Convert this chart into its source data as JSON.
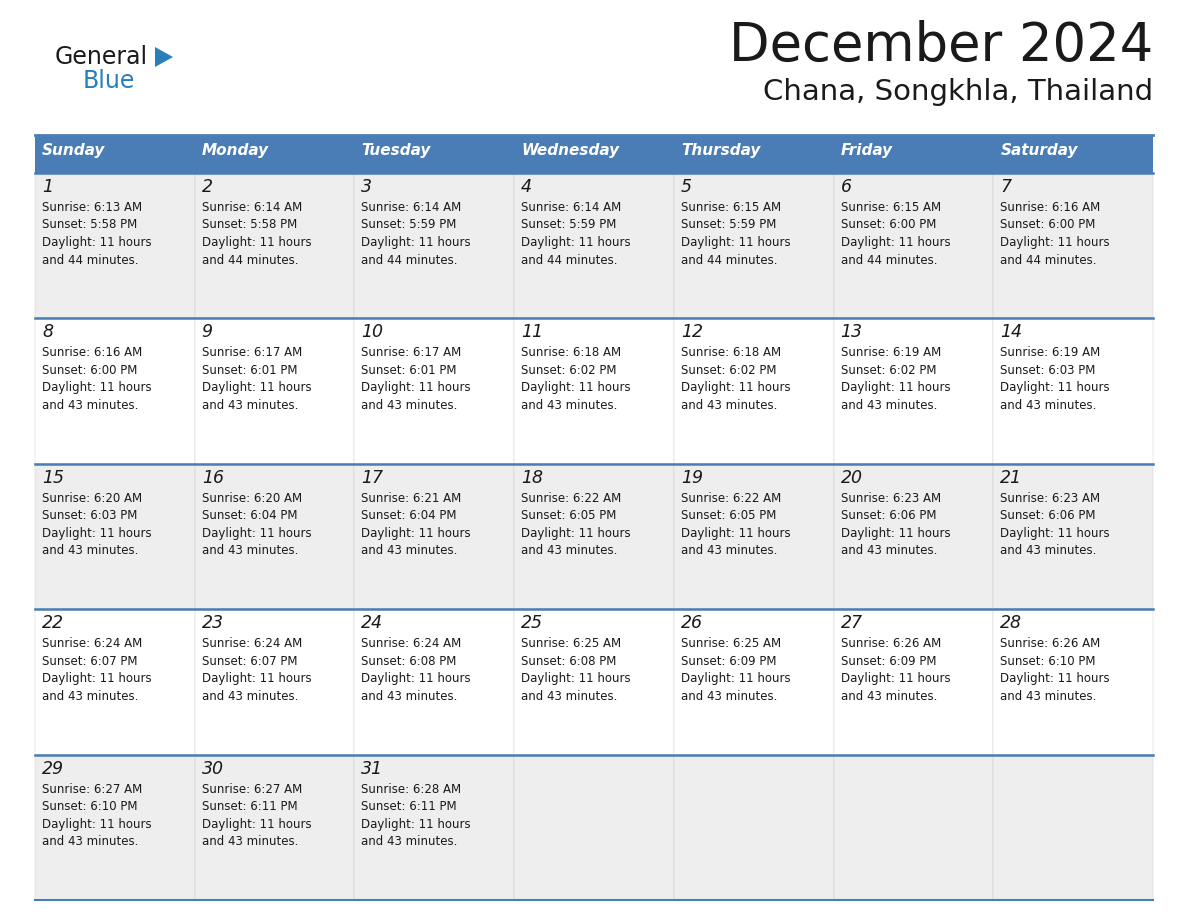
{
  "title": "December 2024",
  "subtitle": "Chana, Songkhla, Thailand",
  "header_color": "#4a7db5",
  "header_text_color": "#FFFFFF",
  "bg_color": "#FFFFFF",
  "cell_bg_even": "#eeeeee",
  "cell_bg_odd": "#FFFFFF",
  "border_color": "#4a7db5",
  "text_color": "#1a1a1a",
  "day_names": [
    "Sunday",
    "Monday",
    "Tuesday",
    "Wednesday",
    "Thursday",
    "Friday",
    "Saturday"
  ],
  "weeks": [
    [
      {
        "day": "1",
        "sunrise": "6:13 AM",
        "sunset": "5:58 PM",
        "dl1": "11 hours",
        "dl2": "and 44 minutes."
      },
      {
        "day": "2",
        "sunrise": "6:14 AM",
        "sunset": "5:58 PM",
        "dl1": "11 hours",
        "dl2": "and 44 minutes."
      },
      {
        "day": "3",
        "sunrise": "6:14 AM",
        "sunset": "5:59 PM",
        "dl1": "11 hours",
        "dl2": "and 44 minutes."
      },
      {
        "day": "4",
        "sunrise": "6:14 AM",
        "sunset": "5:59 PM",
        "dl1": "11 hours",
        "dl2": "and 44 minutes."
      },
      {
        "day": "5",
        "sunrise": "6:15 AM",
        "sunset": "5:59 PM",
        "dl1": "11 hours",
        "dl2": "and 44 minutes."
      },
      {
        "day": "6",
        "sunrise": "6:15 AM",
        "sunset": "6:00 PM",
        "dl1": "11 hours",
        "dl2": "and 44 minutes."
      },
      {
        "day": "7",
        "sunrise": "6:16 AM",
        "sunset": "6:00 PM",
        "dl1": "11 hours",
        "dl2": "and 44 minutes."
      }
    ],
    [
      {
        "day": "8",
        "sunrise": "6:16 AM",
        "sunset": "6:00 PM",
        "dl1": "11 hours",
        "dl2": "and 43 minutes."
      },
      {
        "day": "9",
        "sunrise": "6:17 AM",
        "sunset": "6:01 PM",
        "dl1": "11 hours",
        "dl2": "and 43 minutes."
      },
      {
        "day": "10",
        "sunrise": "6:17 AM",
        "sunset": "6:01 PM",
        "dl1": "11 hours",
        "dl2": "and 43 minutes."
      },
      {
        "day": "11",
        "sunrise": "6:18 AM",
        "sunset": "6:02 PM",
        "dl1": "11 hours",
        "dl2": "and 43 minutes."
      },
      {
        "day": "12",
        "sunrise": "6:18 AM",
        "sunset": "6:02 PM",
        "dl1": "11 hours",
        "dl2": "and 43 minutes."
      },
      {
        "day": "13",
        "sunrise": "6:19 AM",
        "sunset": "6:02 PM",
        "dl1": "11 hours",
        "dl2": "and 43 minutes."
      },
      {
        "day": "14",
        "sunrise": "6:19 AM",
        "sunset": "6:03 PM",
        "dl1": "11 hours",
        "dl2": "and 43 minutes."
      }
    ],
    [
      {
        "day": "15",
        "sunrise": "6:20 AM",
        "sunset": "6:03 PM",
        "dl1": "11 hours",
        "dl2": "and 43 minutes."
      },
      {
        "day": "16",
        "sunrise": "6:20 AM",
        "sunset": "6:04 PM",
        "dl1": "11 hours",
        "dl2": "and 43 minutes."
      },
      {
        "day": "17",
        "sunrise": "6:21 AM",
        "sunset": "6:04 PM",
        "dl1": "11 hours",
        "dl2": "and 43 minutes."
      },
      {
        "day": "18",
        "sunrise": "6:22 AM",
        "sunset": "6:05 PM",
        "dl1": "11 hours",
        "dl2": "and 43 minutes."
      },
      {
        "day": "19",
        "sunrise": "6:22 AM",
        "sunset": "6:05 PM",
        "dl1": "11 hours",
        "dl2": "and 43 minutes."
      },
      {
        "day": "20",
        "sunrise": "6:23 AM",
        "sunset": "6:06 PM",
        "dl1": "11 hours",
        "dl2": "and 43 minutes."
      },
      {
        "day": "21",
        "sunrise": "6:23 AM",
        "sunset": "6:06 PM",
        "dl1": "11 hours",
        "dl2": "and 43 minutes."
      }
    ],
    [
      {
        "day": "22",
        "sunrise": "6:24 AM",
        "sunset": "6:07 PM",
        "dl1": "11 hours",
        "dl2": "and 43 minutes."
      },
      {
        "day": "23",
        "sunrise": "6:24 AM",
        "sunset": "6:07 PM",
        "dl1": "11 hours",
        "dl2": "and 43 minutes."
      },
      {
        "day": "24",
        "sunrise": "6:24 AM",
        "sunset": "6:08 PM",
        "dl1": "11 hours",
        "dl2": "and 43 minutes."
      },
      {
        "day": "25",
        "sunrise": "6:25 AM",
        "sunset": "6:08 PM",
        "dl1": "11 hours",
        "dl2": "and 43 minutes."
      },
      {
        "day": "26",
        "sunrise": "6:25 AM",
        "sunset": "6:09 PM",
        "dl1": "11 hours",
        "dl2": "and 43 minutes."
      },
      {
        "day": "27",
        "sunrise": "6:26 AM",
        "sunset": "6:09 PM",
        "dl1": "11 hours",
        "dl2": "and 43 minutes."
      },
      {
        "day": "28",
        "sunrise": "6:26 AM",
        "sunset": "6:10 PM",
        "dl1": "11 hours",
        "dl2": "and 43 minutes."
      }
    ],
    [
      {
        "day": "29",
        "sunrise": "6:27 AM",
        "sunset": "6:10 PM",
        "dl1": "11 hours",
        "dl2": "and 43 minutes."
      },
      {
        "day": "30",
        "sunrise": "6:27 AM",
        "sunset": "6:11 PM",
        "dl1": "11 hours",
        "dl2": "and 43 minutes."
      },
      {
        "day": "31",
        "sunrise": "6:28 AM",
        "sunset": "6:11 PM",
        "dl1": "11 hours",
        "dl2": "and 43 minutes."
      },
      null,
      null,
      null,
      null
    ]
  ],
  "logo_general_color": "#1a1a1a",
  "logo_blue_color": "#2980b9",
  "logo_triangle_color": "#2980b9"
}
